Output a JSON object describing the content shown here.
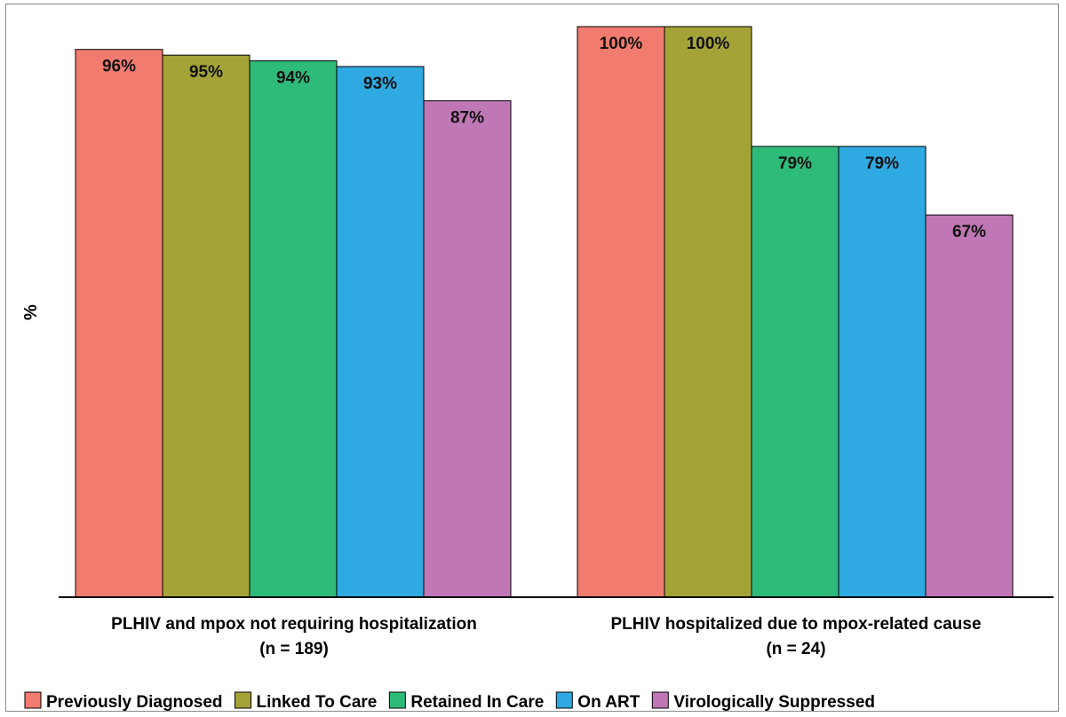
{
  "chart_data": {
    "type": "bar",
    "ylabel": "%",
    "ylim": [
      0,
      100
    ],
    "grid": false,
    "legend_position": "bottom",
    "groups": [
      {
        "label": "PLHIV and mpox not requiring hospitalization",
        "sublabel": "(n = 189)"
      },
      {
        "label": "PLHIV hospitalized due to mpox-related cause",
        "sublabel": "(n = 24)"
      }
    ],
    "series": [
      {
        "name": "Previously Diagnosed",
        "color": "#F27B70",
        "values": [
          96,
          100
        ],
        "labels": [
          "96%",
          "100%"
        ]
      },
      {
        "name": "Linked To Care",
        "color": "#A3A337",
        "values": [
          95,
          100
        ],
        "labels": [
          "95%",
          "100%"
        ]
      },
      {
        "name": "Retained In Care",
        "color": "#2EBB7A",
        "values": [
          94,
          79
        ],
        "labels": [
          "94%",
          "79%"
        ]
      },
      {
        "name": "On ART",
        "color": "#2FA9E1",
        "values": [
          93,
          79
        ],
        "labels": [
          "93%",
          "79%"
        ]
      },
      {
        "name": "Virologically Suppressed",
        "color": "#BF78B5",
        "values": [
          87,
          67
        ],
        "labels": [
          "87%",
          "67%"
        ]
      }
    ]
  }
}
